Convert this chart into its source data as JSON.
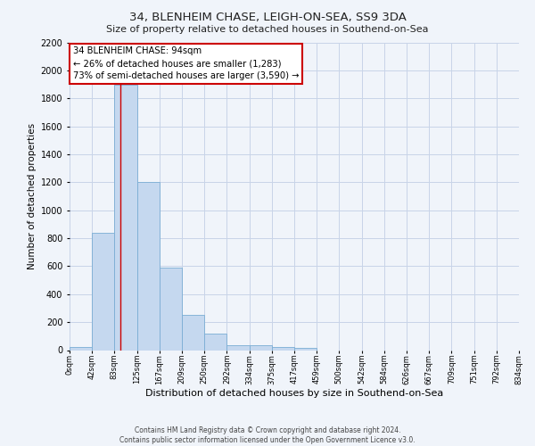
{
  "title_line1": "34, BLENHEIM CHASE, LEIGH-ON-SEA, SS9 3DA",
  "title_line2": "Size of property relative to detached houses in Southend-on-Sea",
  "xlabel": "Distribution of detached houses by size in Southend-on-Sea",
  "ylabel": "Number of detached properties",
  "footer_line1": "Contains HM Land Registry data © Crown copyright and database right 2024.",
  "footer_line2": "Contains public sector information licensed under the Open Government Licence v3.0.",
  "bin_edges": [
    0,
    42,
    83,
    125,
    167,
    209,
    250,
    292,
    334,
    375,
    417,
    459,
    500,
    542,
    584,
    626,
    667,
    709,
    751,
    792,
    834
  ],
  "bar_heights": [
    20,
    840,
    1900,
    1200,
    590,
    250,
    115,
    35,
    35,
    25,
    15,
    0,
    0,
    0,
    0,
    0,
    0,
    0,
    0,
    0
  ],
  "bar_color": "#c5d8ef",
  "bar_edge_color": "#7aadd4",
  "property_size": 94,
  "annotation_line1": "34 BLENHEIM CHASE: 94sqm",
  "annotation_line2": "← 26% of detached houses are smaller (1,283)",
  "annotation_line3": "73% of semi-detached houses are larger (3,590) →",
  "annotation_box_color": "#ffffff",
  "annotation_box_edge_color": "#cc0000",
  "red_line_color": "#cc0000",
  "ylim": [
    0,
    2200
  ],
  "yticks": [
    0,
    200,
    400,
    600,
    800,
    1000,
    1200,
    1400,
    1600,
    1800,
    2000,
    2200
  ],
  "background_color": "#f0f4fa",
  "grid_color": "#c8d4e8",
  "title1_fontsize": 9.5,
  "title2_fontsize": 8.0,
  "ylabel_fontsize": 7.5,
  "xlabel_fontsize": 8.0,
  "ytick_fontsize": 7.0,
  "xtick_fontsize": 6.0,
  "footer_fontsize": 5.5
}
